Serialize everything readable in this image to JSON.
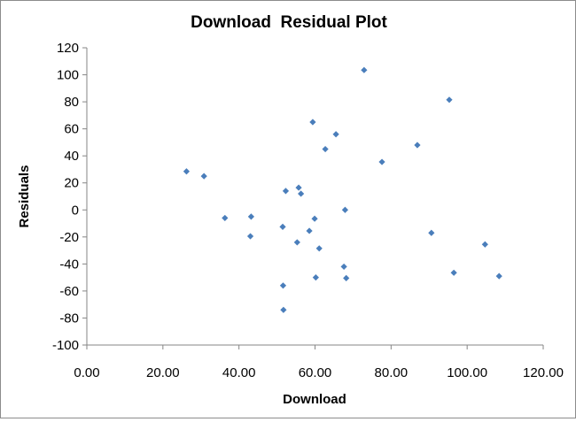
{
  "chart_data": {
    "type": "scatter",
    "title": "Download  Residual Plot",
    "xlabel": "Download",
    "ylabel": "Residuals",
    "xlim": [
      0,
      120
    ],
    "ylim": [
      -100,
      120
    ],
    "x_ticks": [
      "0.00",
      "20.00",
      "40.00",
      "60.00",
      "80.00",
      "100.00",
      "120.00"
    ],
    "y_ticks": [
      "120",
      "100",
      "80",
      "60",
      "40",
      "20",
      "0",
      "-20",
      "-40",
      "-60",
      "-80",
      "-100"
    ],
    "grid": false,
    "legend": "none",
    "marker_color": "#4a7ebb",
    "points": [
      {
        "x": 26.2,
        "y": 28.5
      },
      {
        "x": 30.8,
        "y": 25.0
      },
      {
        "x": 36.3,
        "y": -6.0
      },
      {
        "x": 43.0,
        "y": -19.5
      },
      {
        "x": 43.2,
        "y": -5.0
      },
      {
        "x": 51.5,
        "y": -12.5
      },
      {
        "x": 51.6,
        "y": -56.0
      },
      {
        "x": 51.7,
        "y": -74.0
      },
      {
        "x": 52.3,
        "y": 14.0
      },
      {
        "x": 55.3,
        "y": -24.0
      },
      {
        "x": 55.7,
        "y": 16.5
      },
      {
        "x": 56.3,
        "y": 12.0
      },
      {
        "x": 58.5,
        "y": -15.5
      },
      {
        "x": 59.4,
        "y": 65.0
      },
      {
        "x": 59.9,
        "y": -6.5
      },
      {
        "x": 60.2,
        "y": -50.0
      },
      {
        "x": 61.1,
        "y": -28.5
      },
      {
        "x": 62.7,
        "y": 45.0
      },
      {
        "x": 65.5,
        "y": 56.0
      },
      {
        "x": 67.6,
        "y": -42.0
      },
      {
        "x": 67.9,
        "y": 0.0
      },
      {
        "x": 68.2,
        "y": -50.5
      },
      {
        "x": 72.9,
        "y": 103.5
      },
      {
        "x": 77.6,
        "y": 35.5
      },
      {
        "x": 86.9,
        "y": 48.0
      },
      {
        "x": 90.6,
        "y": -17.0
      },
      {
        "x": 95.3,
        "y": 81.5
      },
      {
        "x": 96.5,
        "y": -46.5
      },
      {
        "x": 104.7,
        "y": -25.5
      },
      {
        "x": 108.4,
        "y": -49.0
      }
    ]
  }
}
